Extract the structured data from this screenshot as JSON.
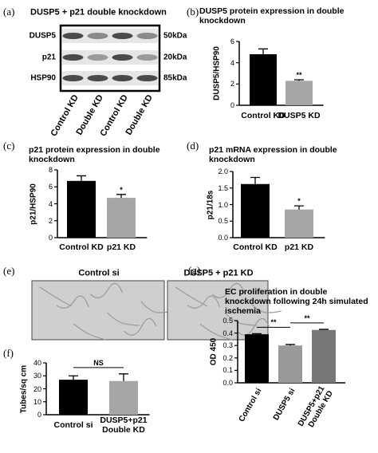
{
  "blot": {
    "panel": "(a)",
    "title": "DUSP5 + p21 double knockdown",
    "rows": [
      "DUSP5",
      "p21",
      "HSP90"
    ],
    "sizes": [
      "50kDa",
      "20kDa",
      "85kDa"
    ],
    "lanes": [
      "Control KD",
      "Double KD",
      "Control KD",
      "Double KD"
    ]
  },
  "images": {
    "panel": "(e)",
    "labels": [
      "Control si",
      "DUSP5 + p21 KD"
    ]
  },
  "chart_data": [
    {
      "type": "bar",
      "panel": "(b)",
      "title": "DUSP5 protein expression in double knockdown",
      "ylabel": "DUSP5/HSP90",
      "categories": [
        "Control KD",
        "DUSP5 KD"
      ],
      "values": [
        4.8,
        2.3
      ],
      "errors": [
        0.5,
        0.1
      ],
      "colors": [
        "#000000",
        "#a6a6a6"
      ],
      "ylim": [
        0,
        6
      ],
      "yticks": [
        0,
        2,
        4,
        6
      ],
      "annotations": [
        "**"
      ]
    },
    {
      "type": "bar",
      "panel": "(c)",
      "title": "p21 protein expression in double knockdown",
      "ylabel": "p21/HSP90",
      "categories": [
        "Control KD",
        "p21 KD"
      ],
      "values": [
        6.7,
        4.7
      ],
      "errors": [
        0.6,
        0.4
      ],
      "colors": [
        "#000000",
        "#a6a6a6"
      ],
      "ylim": [
        0,
        8
      ],
      "yticks": [
        0,
        2,
        4,
        6,
        8
      ],
      "annotations": [
        "*"
      ]
    },
    {
      "type": "bar",
      "panel": "(d)",
      "title": "p21 mRNA expression in double knockdown",
      "ylabel": "p21/18s",
      "categories": [
        "Control KD",
        "p21 KD"
      ],
      "values": [
        1.62,
        0.85
      ],
      "errors": [
        0.2,
        0.11
      ],
      "colors": [
        "#000000",
        "#a6a6a6"
      ],
      "ylim": [
        0,
        2
      ],
      "yticks": [
        {
          "value": 0,
          "label": "0.0"
        },
        0.5,
        {
          "value": 1,
          "label": "1.0"
        },
        1.5,
        {
          "value": 2,
          "label": "2.0"
        }
      ],
      "annotations": [
        "*"
      ]
    },
    {
      "type": "bar",
      "panel": "(f)",
      "ylabel": "Tubes/sq cm",
      "categories": [
        "Control si",
        "DUSP5+p21 Double KD"
      ],
      "values": [
        27,
        26
      ],
      "errors": [
        3,
        5.5
      ],
      "colors": [
        "#000000",
        "#a6a6a6"
      ],
      "ylim": [
        0,
        40
      ],
      "yticks": [
        0,
        10,
        20,
        30,
        40
      ],
      "annotations": [
        "NS"
      ]
    },
    {
      "type": "bar",
      "panel": "(g)",
      "title": "EC proliferation in double knockdown following 24h simulated ischemia",
      "ylabel": "OD 450",
      "categories": [
        "Control si",
        "DUSP5 si",
        "DUSP5+p21 Double KD"
      ],
      "values": [
        0.39,
        0.3,
        0.425
      ],
      "errors": [
        0.005,
        0.008,
        0.005
      ],
      "colors": [
        "#000000",
        "#999999",
        "#777777"
      ],
      "ylim": [
        0,
        0.5
      ],
      "yticks": [
        {
          "value": 0,
          "label": "0.0"
        },
        0.1,
        0.2,
        0.3,
        0.4,
        0.5
      ],
      "annotations": [
        "**",
        "**"
      ]
    }
  ]
}
